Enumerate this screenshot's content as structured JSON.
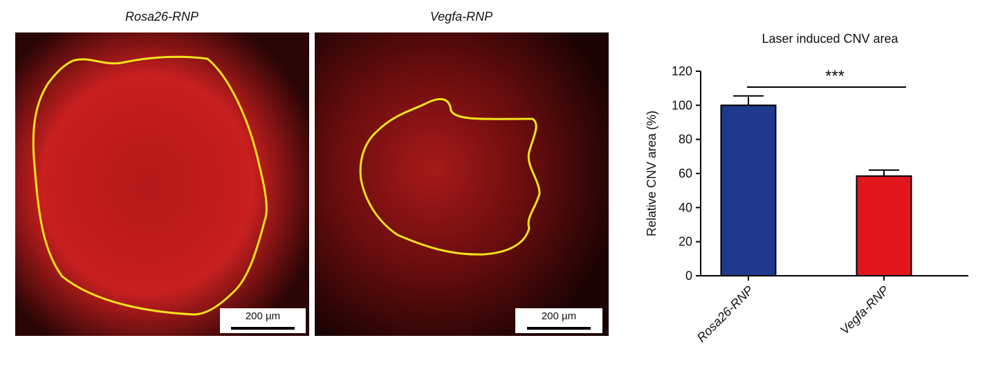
{
  "images": [
    {
      "title": "Rosa26-RNP",
      "scale_bar": "200 µm"
    },
    {
      "title": "Vegfa-RNP",
      "scale_bar": "200 µm"
    }
  ],
  "chart_data": {
    "type": "bar",
    "title": "Laser induced CNV area",
    "y_label": "Relative CNV area (%)",
    "categories": [
      "Rosa26-RNP",
      "Vegfa-RNP"
    ],
    "values": [
      100,
      58.5
    ],
    "errors": [
      5.5,
      3.5
    ],
    "colors": [
      "#1f3a8c",
      "#e0161c"
    ],
    "ylim": [
      0,
      120
    ],
    "yticks": [
      0,
      20,
      40,
      60,
      80,
      100,
      120
    ],
    "significance": "***"
  }
}
